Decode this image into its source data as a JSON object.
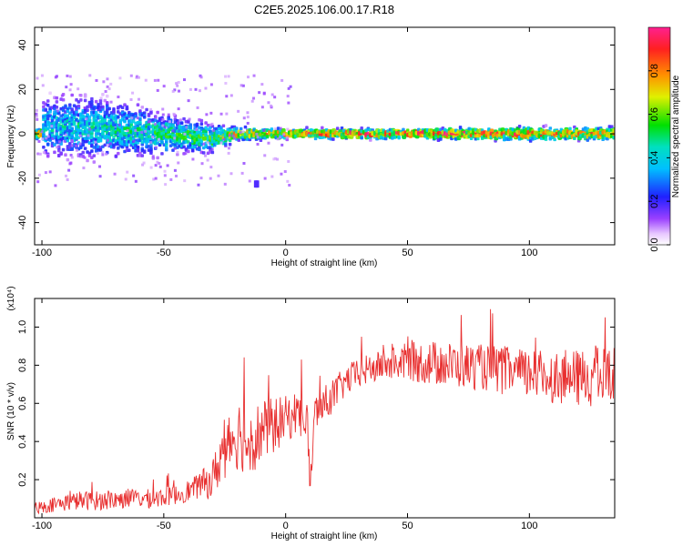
{
  "figure": {
    "title": "C2E5.2025.106.00.17.R18",
    "colors": {
      "snr_line": "#e83030",
      "axes": "#000000"
    }
  },
  "chart_data": [
    {
      "type": "heatmap",
      "xlabel": "Height of straight line (km)",
      "ylabel": "Frequency (Hz)",
      "xlim": [
        -103,
        135
      ],
      "ylim": [
        -50,
        48
      ],
      "x_ticks": [
        -100,
        -50,
        0,
        50,
        100
      ],
      "x_tick_labels": [
        "-100",
        "-50",
        "0",
        "50",
        "100"
      ],
      "y_ticks": [
        -40,
        -20,
        0,
        20,
        40
      ],
      "y_tick_labels": [
        "-40",
        "-20",
        "0",
        "20",
        "40"
      ],
      "colorbar": {
        "label": "Normalized spectral amplitude",
        "range": [
          0,
          1
        ],
        "ticks": [
          0.0,
          0.2,
          0.4,
          0.6,
          0.8
        ],
        "tick_labels": [
          "0.0",
          "0.2",
          "0.4",
          "0.6",
          "0.8"
        ],
        "colormap": "rainbow (white-violet-blue-cyan-green-yellow-red-magenta)"
      },
      "ridge": [
        {
          "x": -100,
          "freq": 3,
          "spread": 8,
          "amp": 0.45
        },
        {
          "x": -80,
          "freq": 3,
          "spread": 9,
          "amp": 0.45
        },
        {
          "x": -60,
          "freq": 1,
          "spread": 7,
          "amp": 0.5
        },
        {
          "x": -40,
          "freq": -1,
          "spread": 5,
          "amp": 0.55
        },
        {
          "x": -30,
          "freq": -2,
          "spread": 4,
          "amp": 0.6
        },
        {
          "x": -20,
          "freq": 0,
          "spread": 2,
          "amp": 0.75
        },
        {
          "x": 0,
          "freq": 0,
          "spread": 1.5,
          "amp": 0.85
        },
        {
          "x": 50,
          "freq": 0,
          "spread": 1.5,
          "amp": 0.95
        },
        {
          "x": 100,
          "freq": 0,
          "spread": 2,
          "amp": 0.85
        },
        {
          "x": 135,
          "freq": 0,
          "spread": 2,
          "amp": 0.8
        }
      ]
    },
    {
      "type": "line",
      "xlabel": "Height of straight line (km)",
      "ylabel": "SNR (10 * v/v)",
      "multiplier_label": "(x10⁴)",
      "xlim": [
        -103,
        135
      ],
      "ylim": [
        0,
        1.15
      ],
      "x_ticks": [
        -100,
        -50,
        0,
        50,
        100
      ],
      "x_tick_labels": [
        "-100",
        "-50",
        "0",
        "50",
        "100"
      ],
      "y_ticks": [
        0.2,
        0.4,
        0.6,
        0.8,
        1.0
      ],
      "y_tick_labels": [
        "0.2",
        "0.4",
        "0.6",
        "0.8",
        "1.0"
      ],
      "series": [
        {
          "color": "#e83030",
          "x": [
            -103,
            -95,
            -85,
            -75,
            -65,
            -55,
            -45,
            -38,
            -30,
            -25,
            -20,
            -15,
            -10,
            -5,
            0,
            5,
            9,
            10,
            12,
            15,
            20,
            25,
            30,
            40,
            50,
            60,
            70,
            80,
            90,
            100,
            110,
            120,
            130,
            135
          ],
          "y": [
            0.05,
            0.07,
            0.09,
            0.09,
            0.1,
            0.1,
            0.12,
            0.15,
            0.2,
            0.38,
            0.45,
            0.4,
            0.45,
            0.48,
            0.52,
            0.55,
            0.5,
            0.15,
            0.55,
            0.58,
            0.65,
            0.72,
            0.76,
            0.8,
            0.82,
            0.81,
            0.8,
            0.79,
            0.77,
            0.75,
            0.74,
            0.73,
            0.74,
            0.75
          ],
          "noise": [
            0.03,
            0.04,
            0.05,
            0.05,
            0.05,
            0.05,
            0.05,
            0.06,
            0.1,
            0.18,
            0.2,
            0.18,
            0.17,
            0.15,
            0.12,
            0.12,
            0.12,
            0.05,
            0.1,
            0.1,
            0.09,
            0.08,
            0.08,
            0.08,
            0.1,
            0.12,
            0.12,
            0.12,
            0.13,
            0.13,
            0.14,
            0.15,
            0.16,
            0.15
          ]
        }
      ]
    }
  ]
}
